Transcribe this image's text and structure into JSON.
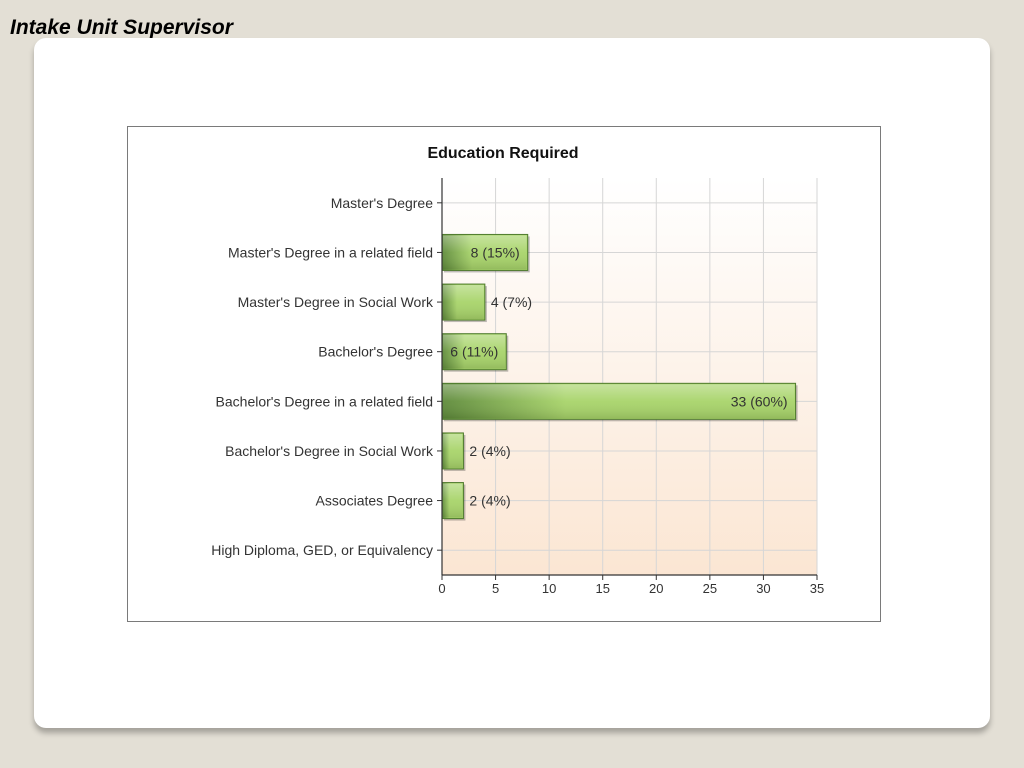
{
  "slide": {
    "title": "Intake Unit Supervisor"
  },
  "colors": {
    "background": "#e3dfd5",
    "card": "#ffffff",
    "bar_dark": "#5e8a3a",
    "bar_light": "#a8d46a",
    "plot_top": "#ffffff",
    "plot_bottom": "#fbe6d3"
  },
  "chart_data": {
    "type": "bar",
    "orientation": "horizontal",
    "title": "Education Required",
    "xlabel": "",
    "ylabel": "",
    "xlim": [
      0,
      35
    ],
    "xticks": [
      0,
      5,
      10,
      15,
      20,
      25,
      30,
      35
    ],
    "grid": true,
    "legend": "none",
    "categories": [
      "Master's Degree",
      "Master's Degree in a related field",
      "Master's Degree in Social Work",
      "Bachelor's Degree",
      "Bachelor's Degree in a related field",
      "Bachelor's Degree in Social Work",
      "Associates Degree",
      "High Diploma, GED, or Equivalency"
    ],
    "values": [
      0,
      8,
      4,
      6,
      33,
      2,
      2,
      0
    ],
    "data_labels": [
      "",
      "8 (15%)",
      "4 (7%)",
      "6 (11%)",
      "33 (60%)",
      "2 (4%)",
      "2 (4%)",
      ""
    ]
  }
}
